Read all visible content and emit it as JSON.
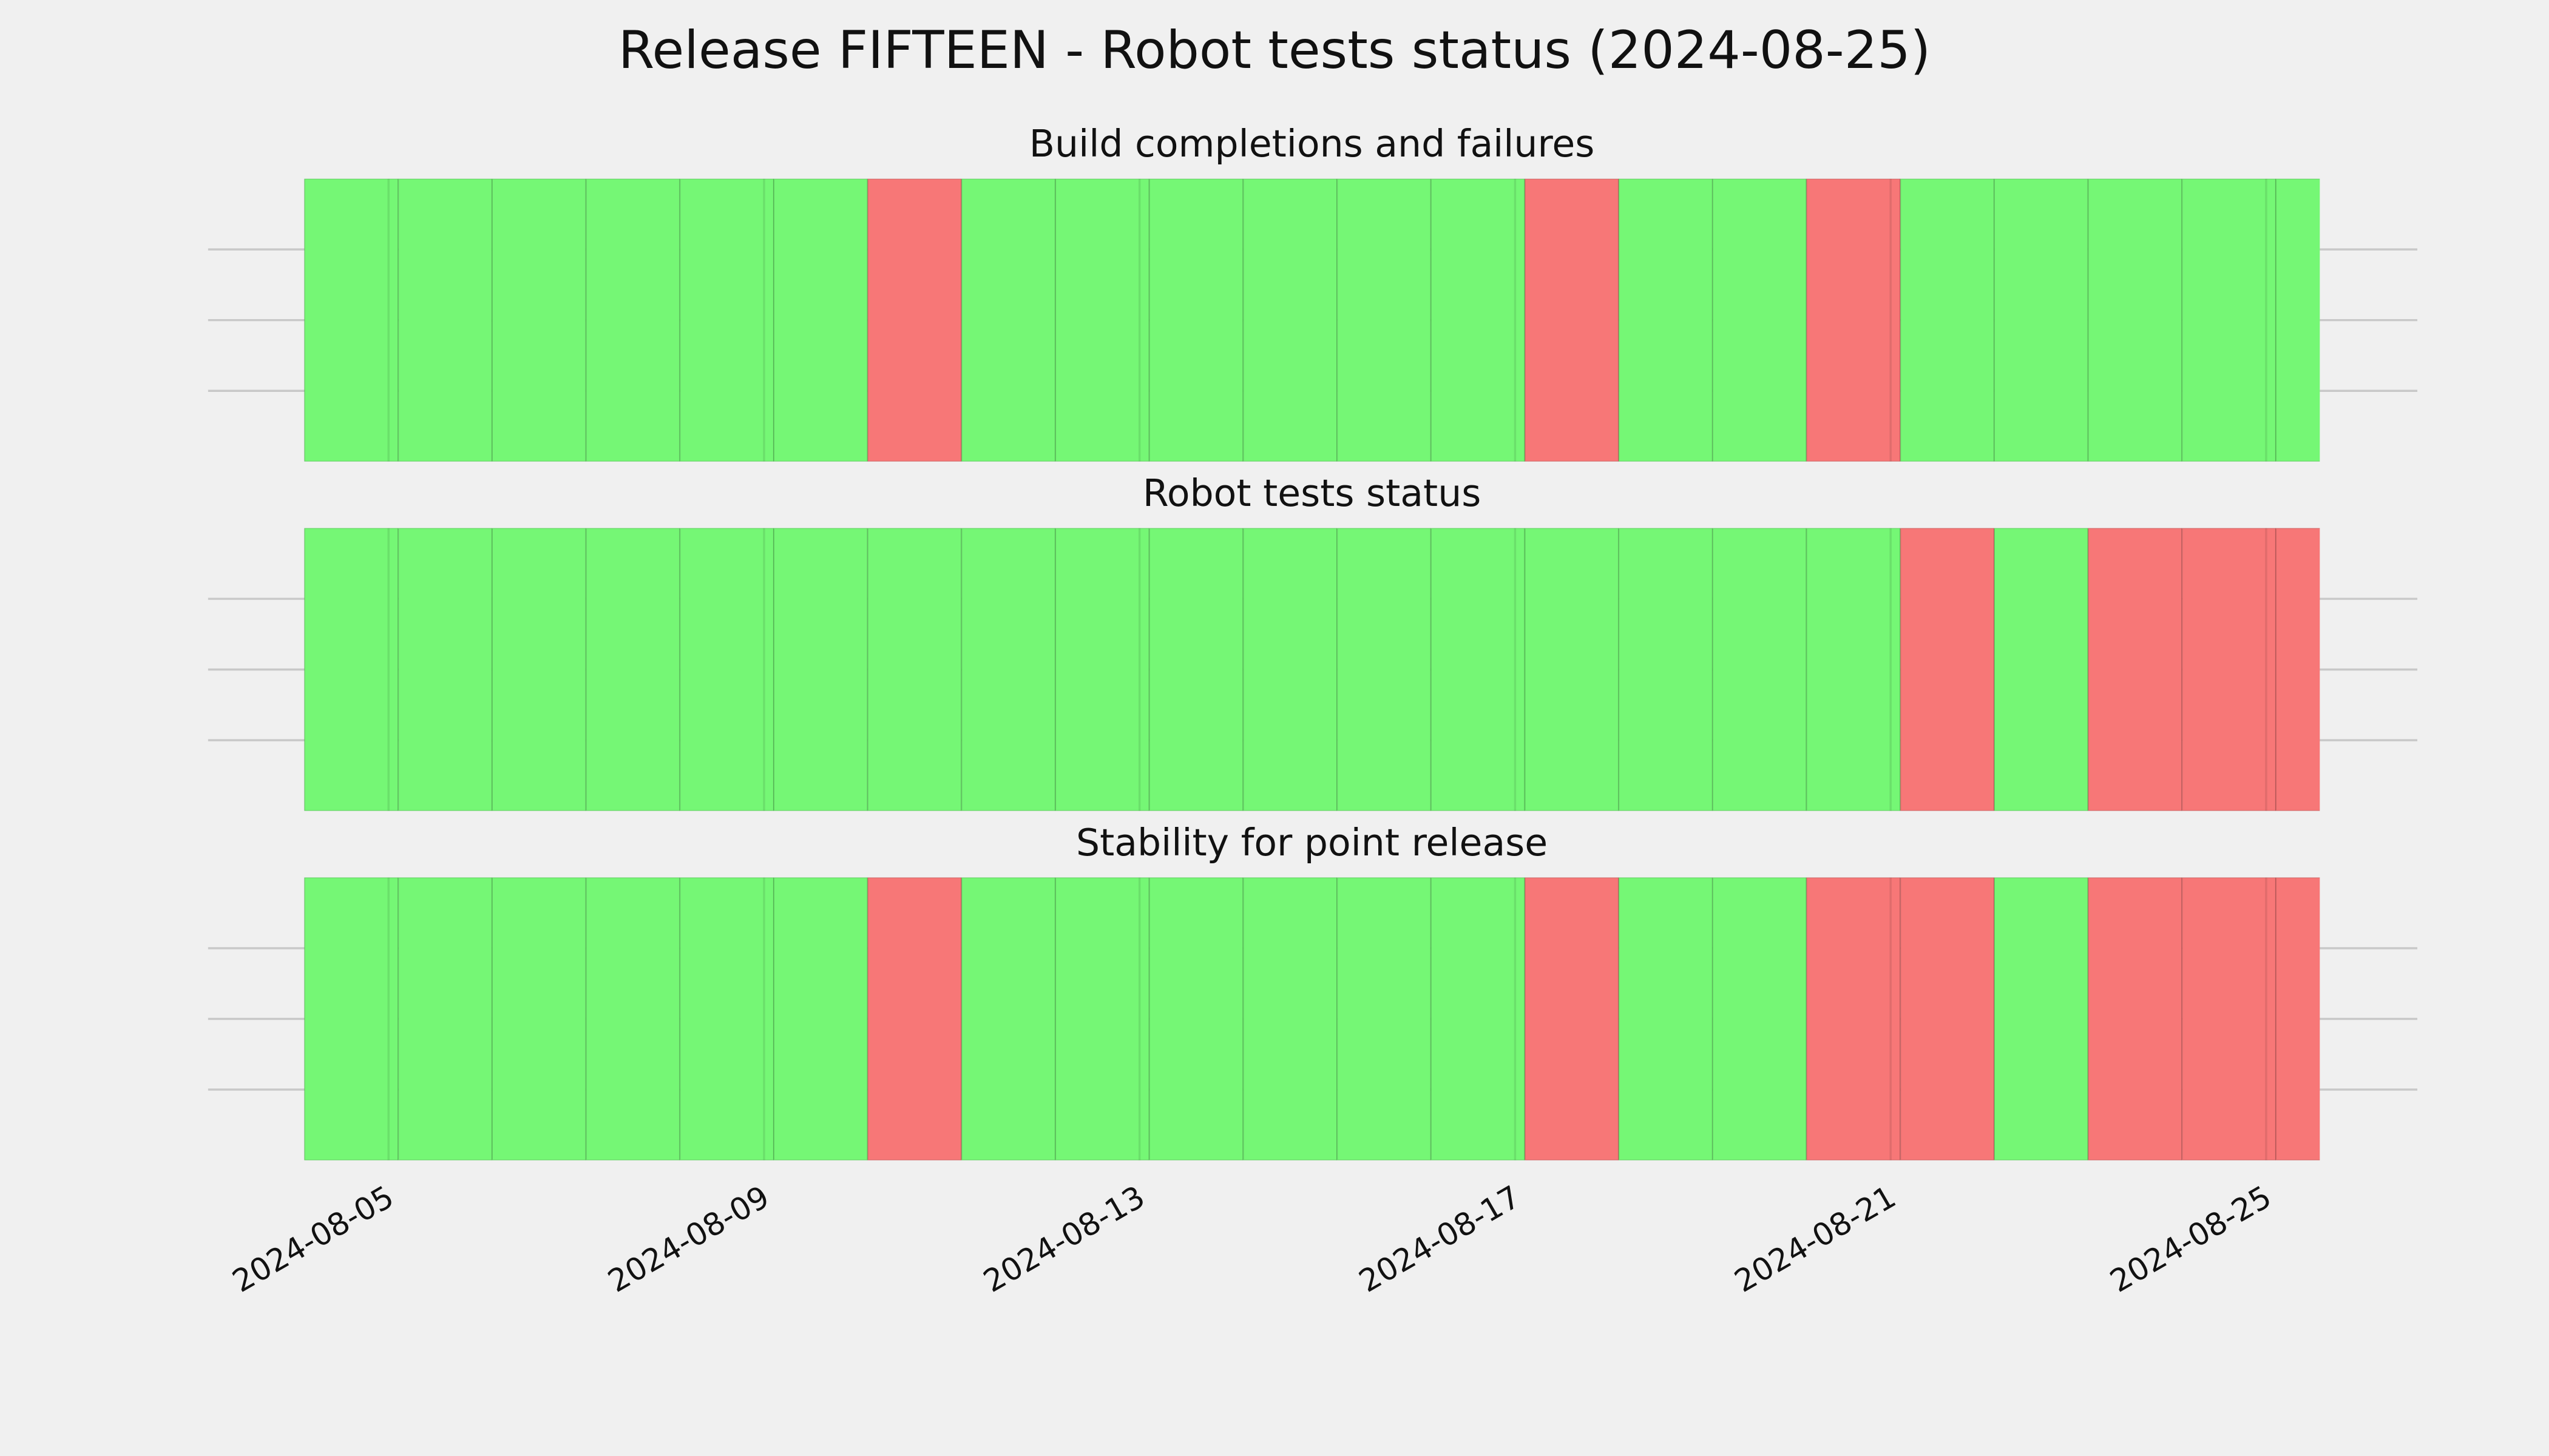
{
  "title": "Release FIFTEEN - Robot tests status (2024-08-25)",
  "chart_data": [
    {
      "type": "status",
      "title": "Build completions and failures",
      "x": [
        "2024-08-04",
        "2024-08-05",
        "2024-08-06",
        "2024-08-07",
        "2024-08-08",
        "2024-08-09",
        "2024-08-10",
        "2024-08-11",
        "2024-08-12",
        "2024-08-13",
        "2024-08-14",
        "2024-08-15",
        "2024-08-16",
        "2024-08-17",
        "2024-08-18",
        "2024-08-19",
        "2024-08-20",
        "2024-08-21",
        "2024-08-22",
        "2024-08-23",
        "2024-08-24",
        "2024-08-25"
      ],
      "values": [
        1,
        1,
        1,
        1,
        1,
        1,
        0,
        1,
        1,
        1,
        1,
        1,
        1,
        0,
        1,
        1,
        0,
        1,
        1,
        1,
        1,
        1
      ],
      "pass_color": "#75f775",
      "fail_color": "#f77777",
      "ylim": [
        0,
        1
      ],
      "yticks": [
        0.25,
        0.5,
        0.75
      ],
      "xticks": [
        "2024-08-05",
        "2024-08-09",
        "2024-08-13",
        "2024-08-17",
        "2024-08-21",
        "2024-08-25"
      ],
      "grid": true
    },
    {
      "type": "status",
      "title": "Robot tests status",
      "x": [
        "2024-08-04",
        "2024-08-05",
        "2024-08-06",
        "2024-08-07",
        "2024-08-08",
        "2024-08-09",
        "2024-08-10",
        "2024-08-11",
        "2024-08-12",
        "2024-08-13",
        "2024-08-14",
        "2024-08-15",
        "2024-08-16",
        "2024-08-17",
        "2024-08-18",
        "2024-08-19",
        "2024-08-20",
        "2024-08-21",
        "2024-08-22",
        "2024-08-23",
        "2024-08-24",
        "2024-08-25"
      ],
      "values": [
        1,
        1,
        1,
        1,
        1,
        1,
        1,
        1,
        1,
        1,
        1,
        1,
        1,
        1,
        1,
        1,
        1,
        0,
        1,
        0,
        0,
        0
      ],
      "pass_color": "#75f775",
      "fail_color": "#f77777",
      "ylim": [
        0,
        1
      ],
      "yticks": [
        0.25,
        0.5,
        0.75
      ],
      "xticks": [
        "2024-08-05",
        "2024-08-09",
        "2024-08-13",
        "2024-08-17",
        "2024-08-21",
        "2024-08-25"
      ],
      "grid": true
    },
    {
      "type": "status",
      "title": "Stability for point release",
      "x": [
        "2024-08-04",
        "2024-08-05",
        "2024-08-06",
        "2024-08-07",
        "2024-08-08",
        "2024-08-09",
        "2024-08-10",
        "2024-08-11",
        "2024-08-12",
        "2024-08-13",
        "2024-08-14",
        "2024-08-15",
        "2024-08-16",
        "2024-08-17",
        "2024-08-18",
        "2024-08-19",
        "2024-08-20",
        "2024-08-21",
        "2024-08-22",
        "2024-08-23",
        "2024-08-24",
        "2024-08-25"
      ],
      "values": [
        1,
        1,
        1,
        1,
        1,
        1,
        0,
        1,
        1,
        1,
        1,
        1,
        1,
        0,
        1,
        1,
        0,
        0,
        1,
        0,
        0,
        0
      ],
      "pass_color": "#75f775",
      "fail_color": "#f77777",
      "ylim": [
        0,
        1
      ],
      "yticks": [
        0.25,
        0.5,
        0.75
      ],
      "xticks": [
        "2024-08-05",
        "2024-08-09",
        "2024-08-13",
        "2024-08-17",
        "2024-08-21",
        "2024-08-25"
      ],
      "grid": true
    }
  ]
}
